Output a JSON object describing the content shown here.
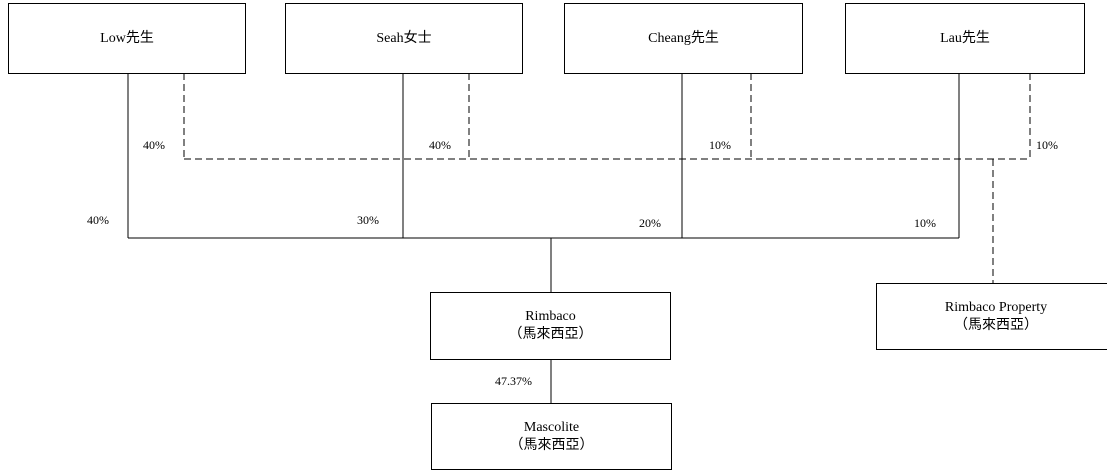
{
  "shareholders": [
    {
      "name": "Low先生"
    },
    {
      "name": "Seah女士"
    },
    {
      "name": "Cheang先生"
    },
    {
      "name": "Lau先生"
    }
  ],
  "rimbaco": {
    "name": "Rimbaco",
    "location": "（馬來西亞）"
  },
  "rimbaco_property": {
    "name": "Rimbaco Property",
    "location": "（馬來西亞）"
  },
  "mascolite": {
    "name": "Mascolite",
    "location": "（馬來西亞）"
  },
  "ownership_in_rimbaco_property": [
    "40%",
    "40%",
    "10%",
    "10%"
  ],
  "ownership_in_rimbaco": [
    "40%",
    "30%",
    "20%",
    "10%"
  ],
  "rimbaco_in_mascolite": "47.37%",
  "colors": {
    "line": "#000000",
    "box_border": "#000000",
    "background": "#ffffff"
  }
}
